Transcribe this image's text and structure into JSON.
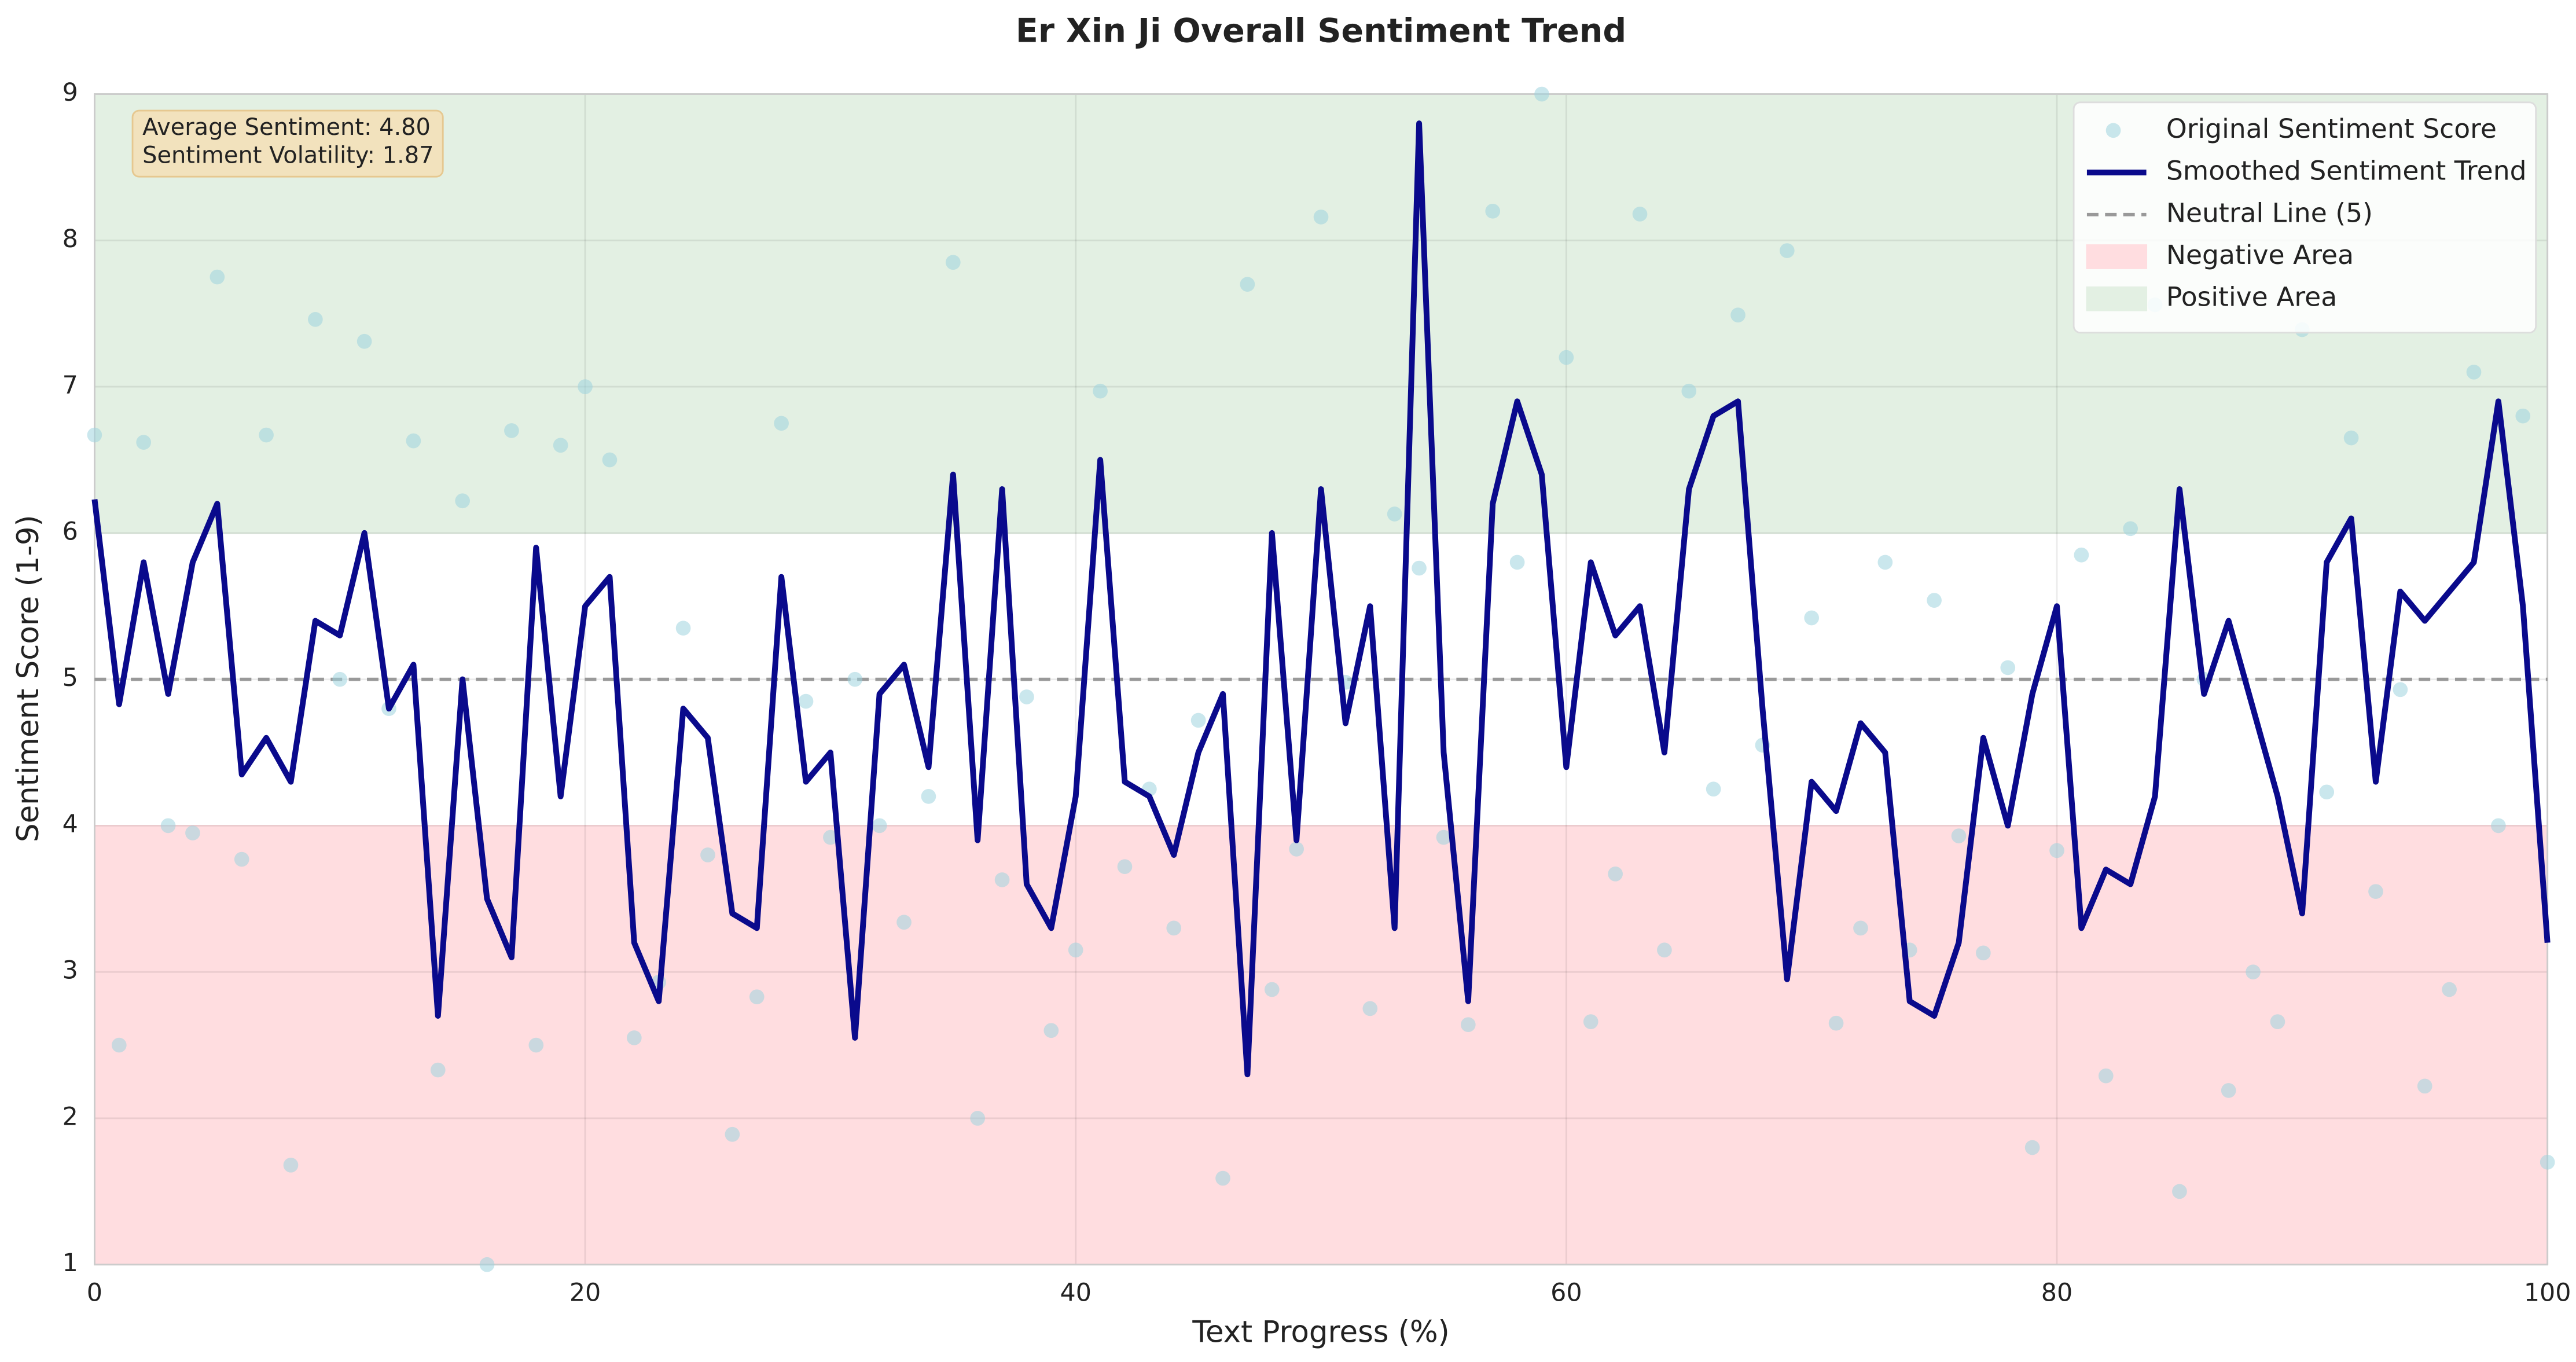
{
  "chart_data": {
    "type": "scatter-line",
    "title": "Er Xin Ji Overall Sentiment Trend",
    "x_label": "Text Progress (%)",
    "y_label": "Sentiment Score (1-9)",
    "xlim": [
      0,
      100
    ],
    "ylim": [
      1,
      9
    ],
    "xticks": [
      0,
      20,
      40,
      60,
      80,
      100
    ],
    "yticks": [
      1,
      2,
      3,
      4,
      5,
      6,
      7,
      8,
      9
    ],
    "grid": true,
    "legend": "upper right",
    "annotations": [
      "Average Sentiment: 4.80",
      "Sentiment Volatility: 1.87"
    ],
    "regions": [
      {
        "name": "Negative Area",
        "range": [
          1,
          4
        ],
        "color": "#ffdde0"
      },
      {
        "name": "Positive Area",
        "range": [
          6,
          9
        ],
        "color": "#e3f0e3"
      }
    ],
    "reference_lines": [
      {
        "name": "Neutral Line (5)",
        "value": 5,
        "color": "#999999"
      }
    ],
    "x": [
      0,
      1,
      2,
      3,
      4,
      5,
      6,
      7,
      8,
      9,
      10,
      11,
      12,
      13,
      14,
      15,
      16,
      17,
      18,
      19,
      20,
      21,
      22,
      23,
      24,
      25,
      26,
      27,
      28,
      29,
      30,
      31,
      32,
      33,
      34,
      35,
      36,
      37,
      38,
      39,
      40,
      41,
      42,
      43,
      44,
      45,
      46,
      47,
      48,
      49,
      50,
      51,
      52,
      53,
      54,
      55,
      56,
      57,
      58,
      59,
      60,
      61,
      62,
      63,
      64,
      65,
      66,
      67,
      68,
      69,
      70,
      71,
      72,
      73,
      74,
      75,
      76,
      77,
      78,
      79,
      80,
      81,
      82,
      83,
      84,
      85,
      86,
      87,
      88,
      89,
      90,
      91,
      92,
      93,
      94,
      95,
      96,
      97,
      98,
      99,
      100
    ],
    "series": [
      {
        "name": "Original Sentiment Score",
        "kind": "scatter",
        "color": "#9fd3df",
        "values": [
          6.67,
          2.5,
          6.62,
          4.0,
          3.95,
          7.75,
          3.77,
          6.67,
          1.68,
          7.46,
          5.0,
          7.31,
          4.8,
          6.63,
          2.33,
          6.22,
          1.0,
          6.7,
          2.5,
          6.6,
          7.0,
          6.5,
          2.55,
          2.93,
          5.35,
          3.8,
          1.89,
          2.83,
          6.75,
          4.85,
          3.92,
          5.0,
          4.0,
          3.34,
          4.2,
          7.85,
          2.0,
          3.63,
          4.88,
          2.6,
          3.15,
          6.97,
          3.72,
          4.25,
          3.3,
          4.72,
          1.59,
          7.7,
          2.88,
          3.84,
          8.16,
          4.98,
          2.75,
          6.13,
          5.76,
          3.92,
          2.64,
          8.2,
          5.8,
          9.0,
          7.2,
          2.66,
          3.67,
          8.18,
          3.15,
          6.97,
          4.25,
          7.49,
          4.55,
          7.93,
          5.42,
          2.65,
          3.3,
          5.8,
          3.15,
          5.54,
          3.93,
          3.13,
          5.08,
          1.8,
          3.83,
          5.85,
          2.29,
          6.03,
          7.56,
          1.5,
          5.0,
          2.19,
          3.0,
          2.66,
          7.39,
          4.23,
          6.65,
          3.55,
          4.93,
          2.22,
          2.88,
          7.1,
          4.0,
          6.8,
          1.7
        ]
      },
      {
        "name": "Smoothed Sentiment Trend",
        "kind": "line",
        "color": "#0a0a8c",
        "values": [
          6.23,
          4.83,
          5.8,
          4.9,
          5.8,
          6.2,
          4.35,
          4.6,
          4.3,
          5.4,
          5.3,
          6.0,
          4.8,
          5.1,
          2.7,
          5.0,
          3.5,
          3.1,
          5.9,
          4.2,
          5.5,
          5.7,
          3.2,
          2.8,
          4.8,
          4.6,
          3.4,
          3.3,
          5.7,
          4.3,
          4.5,
          2.55,
          4.9,
          5.1,
          4.4,
          6.4,
          3.9,
          6.3,
          3.6,
          3.3,
          4.2,
          6.5,
          4.3,
          4.2,
          3.8,
          4.5,
          4.9,
          2.3,
          6.0,
          3.9,
          6.3,
          4.7,
          5.5,
          3.3,
          8.8,
          4.5,
          2.8,
          6.2,
          6.9,
          6.4,
          4.4,
          5.8,
          5.3,
          5.5,
          4.5,
          6.3,
          6.8,
          6.9,
          4.8,
          2.95,
          4.3,
          4.1,
          4.7,
          4.5,
          2.8,
          2.7,
          3.2,
          4.6,
          4.0,
          4.9,
          5.5,
          3.3,
          3.7,
          3.6,
          4.2,
          6.3,
          4.9,
          5.4,
          4.8,
          4.2,
          3.4,
          5.8,
          6.1,
          4.3,
          5.6,
          5.4,
          5.6,
          5.8,
          6.9,
          5.5,
          3.2
        ]
      }
    ]
  }
}
